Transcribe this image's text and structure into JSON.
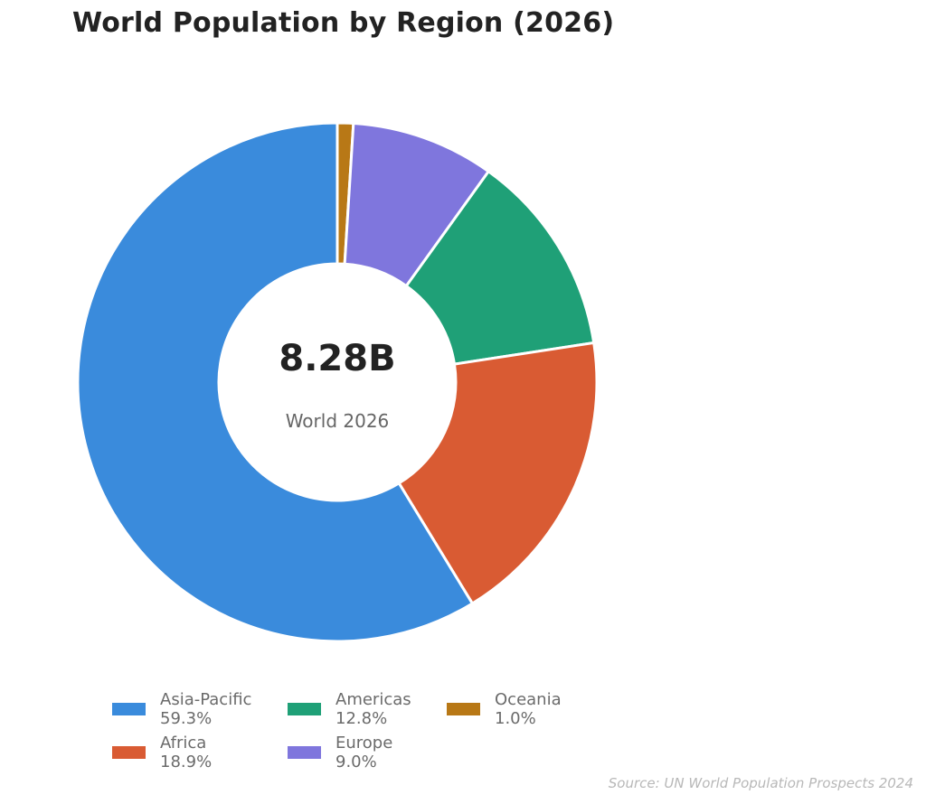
{
  "title": "World Population by Region (2026)",
  "center": {
    "value": "8.28B",
    "label": "World 2026"
  },
  "source": "Source: UN World Population Prospects 2024",
  "legend": [
    {
      "name": "Asia-Pacific",
      "pct": "59.3%",
      "color": "#3a8bdc"
    },
    {
      "name": "Africa",
      "pct": "18.9%",
      "color": "#d95b33"
    },
    {
      "name": "Americas",
      "pct": "12.8%",
      "color": "#1fa077"
    },
    {
      "name": "Europe",
      "pct": "9.0%",
      "color": "#7f76dd"
    },
    {
      "name": "Oceania",
      "pct": "1.0%",
      "color": "#b87816"
    }
  ],
  "chart_data": {
    "type": "pie",
    "subtype": "donut",
    "title": "World Population by Region (2026)",
    "categories": [
      "Oceania",
      "Europe",
      "Americas",
      "Africa",
      "Asia-Pacific"
    ],
    "values": [
      1.0,
      9.0,
      12.8,
      18.9,
      59.3
    ],
    "unit": "%",
    "colors": [
      "#b87816",
      "#7f76dd",
      "#1fa077",
      "#d95b33",
      "#3a8bdc"
    ],
    "start_angle": "12 o'clock, clockwise",
    "center_text": "8.28B",
    "center_subtext": "World 2026",
    "legend_position": "bottom",
    "source": "Source: UN World Population Prospects 2024"
  }
}
